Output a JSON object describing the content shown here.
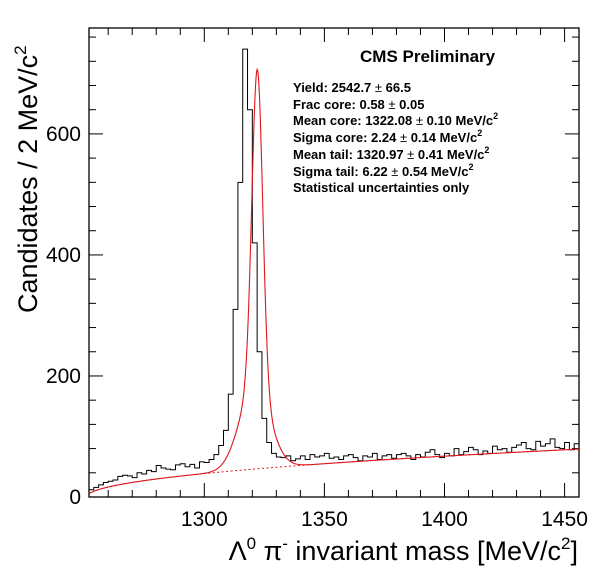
{
  "chart_data": {
    "type": "histogram",
    "title": "CMS Preliminary",
    "xlabel_parts": [
      "Λ",
      "0",
      " π",
      "-",
      " invariant mass [MeV/c",
      "2",
      "]"
    ],
    "ylabel_parts": [
      "Candidates / 2 MeV/c",
      "2"
    ],
    "xlim": [
      1252,
      1456
    ],
    "ylim": [
      0,
      775
    ],
    "xticks": [
      1300,
      1350,
      1400,
      1450
    ],
    "yticks": [
      0,
      200,
      400,
      600
    ],
    "bin_width": 2,
    "x_start": 1252,
    "values": [
      12,
      16,
      20,
      24,
      26,
      28,
      34,
      36,
      35,
      32,
      40,
      38,
      44,
      42,
      52,
      48,
      46,
      45,
      53,
      55,
      50,
      54,
      48,
      58,
      57,
      62,
      70,
      85,
      110,
      170,
      310,
      520,
      740,
      640,
      420,
      240,
      130,
      90,
      72,
      66,
      65,
      68,
      60,
      63,
      68,
      62,
      70,
      66,
      68,
      72,
      64,
      66,
      62,
      68,
      70,
      65,
      60,
      68,
      66,
      72,
      62,
      68,
      70,
      64,
      70,
      72,
      68,
      62,
      70,
      66,
      74,
      78,
      70,
      65,
      72,
      68,
      80,
      70,
      75,
      82,
      78,
      70,
      76,
      72,
      84,
      78,
      80,
      74,
      82,
      86,
      90,
      80,
      78,
      92,
      84,
      88,
      96,
      82,
      80,
      90,
      78,
      88
    ],
    "fit_model": {
      "yield": 2542.7,
      "frac_core": 0.58,
      "mean_core": 1322.08,
      "sigma_core": 2.24,
      "mean_tail": 1320.97,
      "sigma_tail": 6.22,
      "background_scale": 5.53,
      "background_x0": 1251.1
    },
    "series": [
      {
        "name": "data",
        "style": "histogram",
        "color": "#000000"
      },
      {
        "name": "",
        "style": "total-fit",
        "color": "#e0141b"
      },
      {
        "name": "",
        "style": "background-fit-dashed",
        "color": "#e0141b"
      }
    ]
  },
  "stats": {
    "lines": [
      [
        "Yield: 2542.7 ",
        "±",
        " 66.5"
      ],
      [
        "Frac core: 0.58 ",
        "±",
        " 0.05"
      ],
      [
        "Mean core: 1322.08 ",
        "±",
        " 0.10 MeV/c",
        "2"
      ],
      [
        "Sigma core: 2.24 ",
        "±",
        " 0.14 MeV/c",
        "2"
      ],
      [
        "Mean tail: 1320.97 ",
        "±",
        " 0.41 MeV/c",
        "2"
      ],
      [
        "Sigma tail: 6.22 ",
        "±",
        " 0.54 MeV/c",
        "2"
      ],
      [
        "Statistical uncertainties only"
      ]
    ]
  }
}
